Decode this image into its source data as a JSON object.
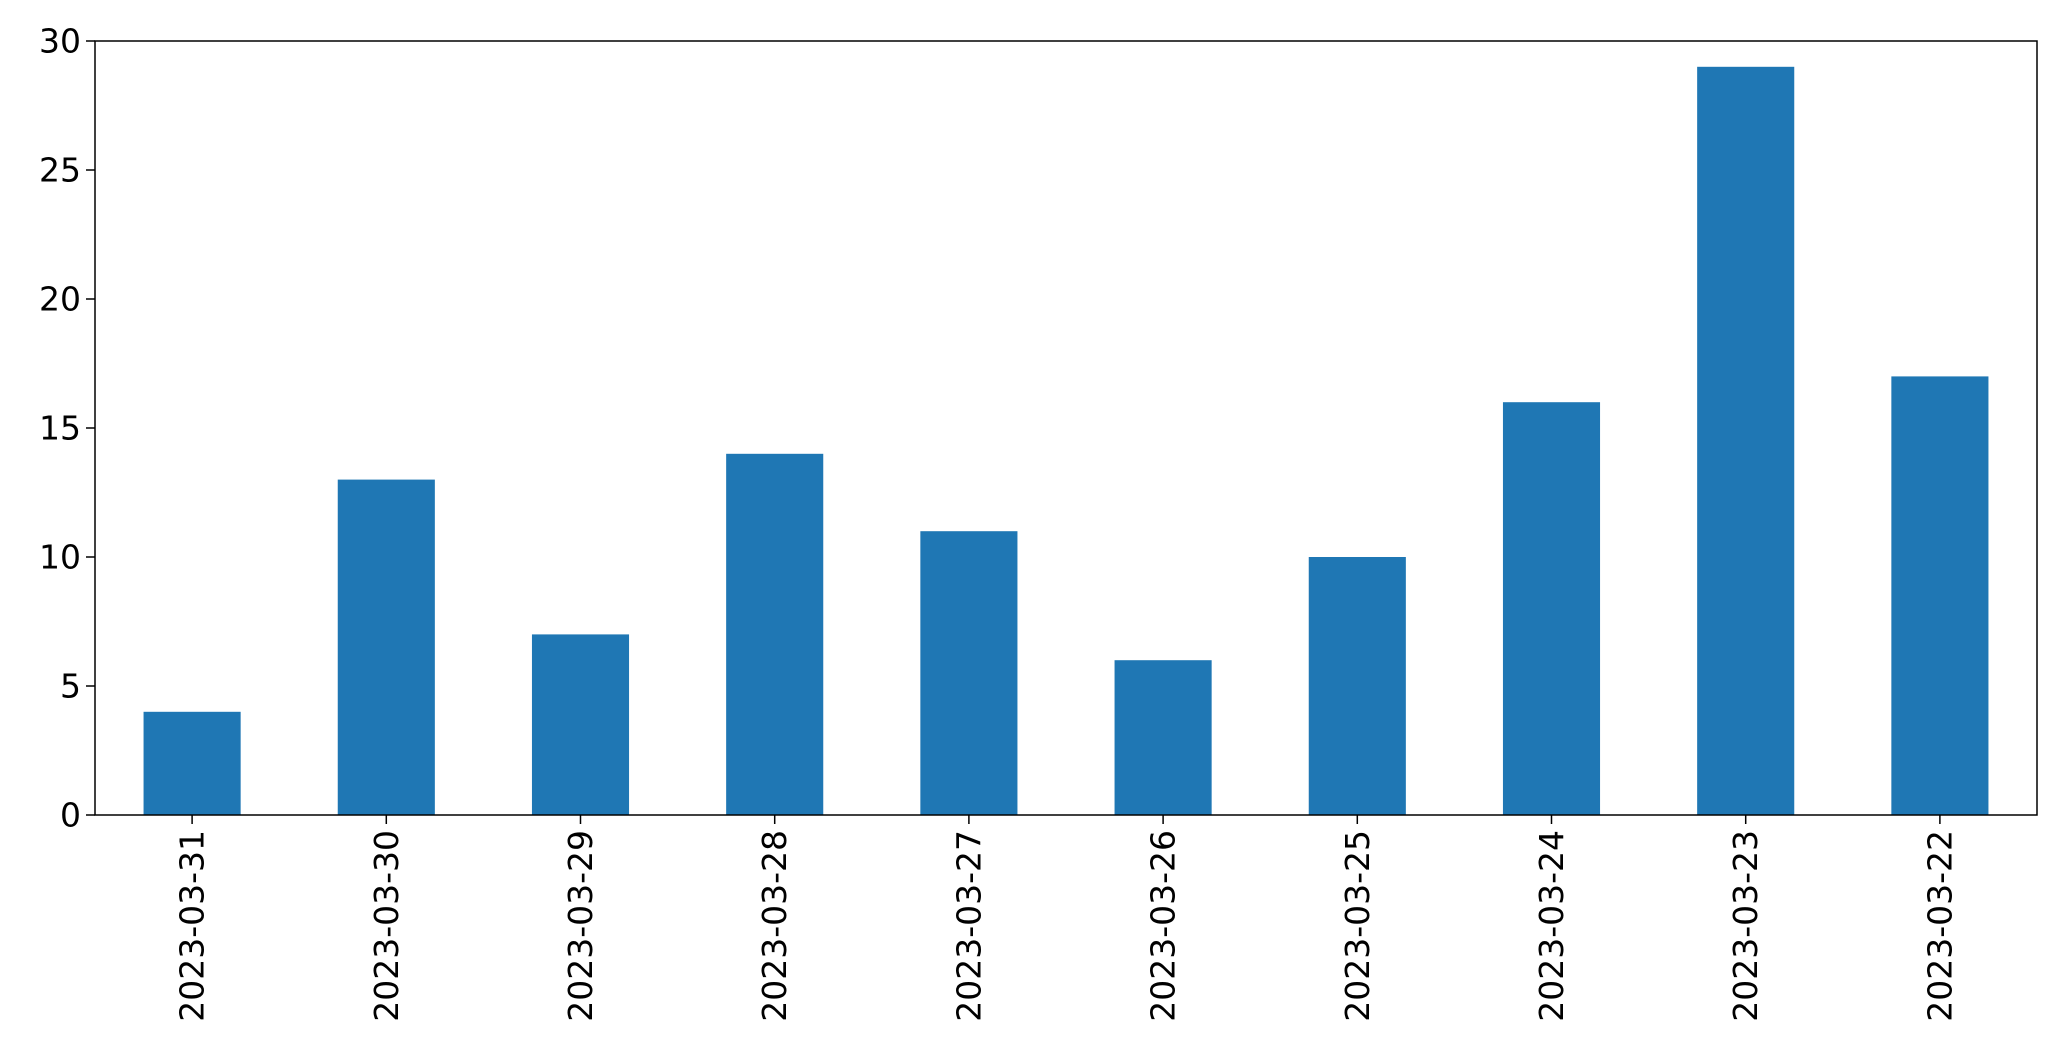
{
  "chart_data": {
    "type": "bar",
    "title": "",
    "xlabel": "",
    "ylabel": "",
    "categories": [
      "2023-03-31",
      "2023-03-30",
      "2023-03-29",
      "2023-03-28",
      "2023-03-27",
      "2023-03-26",
      "2023-03-25",
      "2023-03-24",
      "2023-03-23",
      "2023-03-22"
    ],
    "values": [
      4,
      13,
      7,
      14,
      11,
      6,
      10,
      16,
      29,
      17
    ],
    "ylim": [
      0,
      30
    ],
    "yticks": [
      0,
      5,
      10,
      15,
      20,
      25,
      30
    ],
    "bar_color": "#1f77b4",
    "grid": false,
    "legend": "none"
  }
}
